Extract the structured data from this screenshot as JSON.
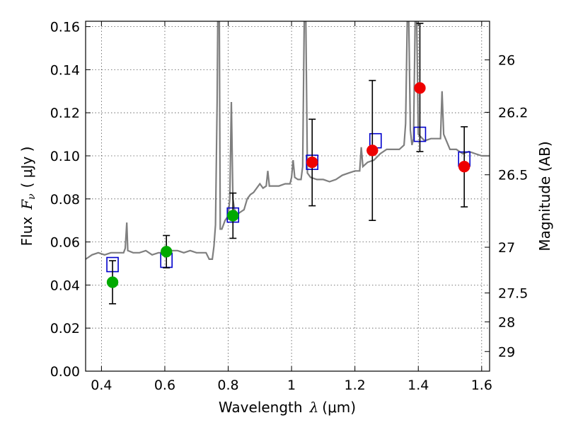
{
  "chart_data": {
    "type": "scatter",
    "xlabel": "Wavelength",
    "xlabel_symbol": "λ",
    "xlabel_unit": "(μm)",
    "ylabel": "Flux",
    "ylabel_symbol": "F",
    "ylabel_symbol_sub": "ν",
    "ylabel_unit": "( μJy )",
    "y2label": "Magnitude (AB)",
    "xlim": [
      0.35,
      1.625
    ],
    "ylim": [
      0.0,
      0.1625
    ],
    "grid": true,
    "x_ticks": [
      {
        "value": 0.4,
        "label": "0.4"
      },
      {
        "value": 0.6,
        "label": "0.6"
      },
      {
        "value": 0.8,
        "label": "0.8"
      },
      {
        "value": 1.0,
        "label": "1"
      },
      {
        "value": 1.2,
        "label": "1.2"
      },
      {
        "value": 1.4,
        "label": "1.4"
      },
      {
        "value": 1.6,
        "label": "1.6"
      }
    ],
    "y_ticks": [
      {
        "value": 0.0,
        "label": "0.00"
      },
      {
        "value": 0.02,
        "label": "0.02"
      },
      {
        "value": 0.04,
        "label": "0.04"
      },
      {
        "value": 0.06,
        "label": "0.06"
      },
      {
        "value": 0.08,
        "label": "0.08"
      },
      {
        "value": 0.1,
        "label": "0.10"
      },
      {
        "value": 0.12,
        "label": "0.12"
      },
      {
        "value": 0.14,
        "label": "0.14"
      },
      {
        "value": 0.16,
        "label": "0.16"
      }
    ],
    "y2_ticks": [
      {
        "value": 26,
        "label": "26"
      },
      {
        "value": 26.2,
        "label": "26.2"
      },
      {
        "value": 26.5,
        "label": "26.5"
      },
      {
        "value": 27,
        "label": "27"
      },
      {
        "value": 27.5,
        "label": "27.5"
      },
      {
        "value": 28,
        "label": "28"
      },
      {
        "value": 29,
        "label": "29"
      }
    ],
    "spectrum": {
      "color": "#7f7f7f",
      "points": [
        [
          0.35,
          0.052
        ],
        [
          0.37,
          0.054
        ],
        [
          0.39,
          0.055
        ],
        [
          0.41,
          0.054
        ],
        [
          0.43,
          0.055
        ],
        [
          0.45,
          0.055
        ],
        [
          0.47,
          0.055
        ],
        [
          0.475,
          0.057
        ],
        [
          0.48,
          0.069
        ],
        [
          0.483,
          0.056
        ],
        [
          0.5,
          0.055
        ],
        [
          0.52,
          0.055
        ],
        [
          0.54,
          0.056
        ],
        [
          0.56,
          0.054
        ],
        [
          0.58,
          0.055
        ],
        [
          0.6,
          0.055
        ],
        [
          0.62,
          0.056
        ],
        [
          0.64,
          0.056
        ],
        [
          0.66,
          0.055
        ],
        [
          0.68,
          0.056
        ],
        [
          0.7,
          0.055
        ],
        [
          0.72,
          0.055
        ],
        [
          0.73,
          0.055
        ],
        [
          0.74,
          0.052
        ],
        [
          0.75,
          0.052
        ],
        [
          0.755,
          0.058
        ],
        [
          0.76,
          0.068
        ],
        [
          0.765,
          0.125
        ],
        [
          0.767,
          0.1625
        ],
        [
          0.772,
          0.1625
        ],
        [
          0.775,
          0.066
        ],
        [
          0.78,
          0.066
        ],
        [
          0.79,
          0.07
        ],
        [
          0.8,
          0.072
        ],
        [
          0.805,
          0.08
        ],
        [
          0.81,
          0.125
        ],
        [
          0.815,
          0.08
        ],
        [
          0.82,
          0.075
        ],
        [
          0.83,
          0.073
        ],
        [
          0.84,
          0.074
        ],
        [
          0.85,
          0.075
        ],
        [
          0.86,
          0.08
        ],
        [
          0.87,
          0.082
        ],
        [
          0.88,
          0.083
        ],
        [
          0.89,
          0.085
        ],
        [
          0.9,
          0.087
        ],
        [
          0.91,
          0.085
        ],
        [
          0.92,
          0.086
        ],
        [
          0.925,
          0.093
        ],
        [
          0.93,
          0.086
        ],
        [
          0.94,
          0.086
        ],
        [
          0.96,
          0.086
        ],
        [
          0.98,
          0.087
        ],
        [
          0.995,
          0.087
        ],
        [
          1.0,
          0.09
        ],
        [
          1.005,
          0.098
        ],
        [
          1.01,
          0.09
        ],
        [
          1.02,
          0.089
        ],
        [
          1.03,
          0.089
        ],
        [
          1.035,
          0.095
        ],
        [
          1.04,
          0.1625
        ],
        [
          1.045,
          0.1625
        ],
        [
          1.05,
          0.092
        ],
        [
          1.06,
          0.09
        ],
        [
          1.08,
          0.089
        ],
        [
          1.1,
          0.089
        ],
        [
          1.12,
          0.088
        ],
        [
          1.14,
          0.089
        ],
        [
          1.16,
          0.091
        ],
        [
          1.18,
          0.092
        ],
        [
          1.2,
          0.093
        ],
        [
          1.215,
          0.093
        ],
        [
          1.22,
          0.104
        ],
        [
          1.225,
          0.095
        ],
        [
          1.24,
          0.097
        ],
        [
          1.26,
          0.098
        ],
        [
          1.28,
          0.101
        ],
        [
          1.3,
          0.103
        ],
        [
          1.32,
          0.103
        ],
        [
          1.34,
          0.103
        ],
        [
          1.355,
          0.105
        ],
        [
          1.36,
          0.115
        ],
        [
          1.365,
          0.1625
        ],
        [
          1.37,
          0.1625
        ],
        [
          1.375,
          0.112
        ],
        [
          1.38,
          0.105
        ],
        [
          1.385,
          0.108
        ],
        [
          1.39,
          0.1625
        ],
        [
          1.395,
          0.1625
        ],
        [
          1.4,
          0.11
        ],
        [
          1.42,
          0.107
        ],
        [
          1.44,
          0.108
        ],
        [
          1.46,
          0.108
        ],
        [
          1.47,
          0.108
        ],
        [
          1.475,
          0.13
        ],
        [
          1.48,
          0.11
        ],
        [
          1.5,
          0.103
        ],
        [
          1.52,
          0.103
        ],
        [
          1.54,
          0.101
        ],
        [
          1.56,
          0.102
        ],
        [
          1.58,
          0.101
        ],
        [
          1.6,
          0.1
        ],
        [
          1.625,
          0.1
        ]
      ]
    },
    "model_points": {
      "marker": "open-square",
      "color": "#0000cc",
      "points": [
        {
          "x": 0.435,
          "y": 0.0495
        },
        {
          "x": 0.605,
          "y": 0.0515
        },
        {
          "x": 0.815,
          "y": 0.0725
        },
        {
          "x": 1.065,
          "y": 0.097
        },
        {
          "x": 1.265,
          "y": 0.107
        },
        {
          "x": 1.405,
          "y": 0.11
        },
        {
          "x": 1.545,
          "y": 0.0985
        }
      ]
    },
    "observed_points": [
      {
        "x": 0.435,
        "y": 0.0413,
        "yerr_low": 0.0313,
        "yerr_high": 0.0513,
        "color": "#00aa00"
      },
      {
        "x": 0.605,
        "y": 0.0555,
        "yerr_low": 0.048,
        "yerr_high": 0.063,
        "color": "#00aa00"
      },
      {
        "x": 0.815,
        "y": 0.0722,
        "yerr_low": 0.0617,
        "yerr_high": 0.0827,
        "color": "#00aa00"
      },
      {
        "x": 1.065,
        "y": 0.097,
        "yerr_low": 0.0768,
        "yerr_high": 0.117,
        "color": "#ee0000"
      },
      {
        "x": 1.255,
        "y": 0.1025,
        "yerr_low": 0.07,
        "yerr_high": 0.135,
        "color": "#ee0000"
      },
      {
        "x": 1.405,
        "y": 0.1315,
        "yerr_low": 0.102,
        "yerr_high": 0.1615,
        "color": "#ee0000"
      },
      {
        "x": 1.545,
        "y": 0.095,
        "yerr_low": 0.0763,
        "yerr_high": 0.1135,
        "color": "#ee0000"
      }
    ]
  }
}
